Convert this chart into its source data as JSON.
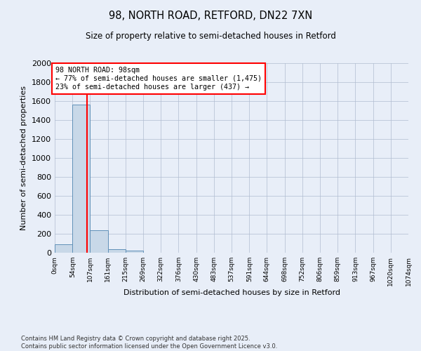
{
  "title1": "98, NORTH ROAD, RETFORD, DN22 7XN",
  "title2": "Size of property relative to semi-detached houses in Retford",
  "xlabel": "Distribution of semi-detached houses by size in Retford",
  "ylabel": "Number of semi-detached properties",
  "bar_counts": [
    90,
    1560,
    240,
    35,
    25,
    0,
    0,
    0,
    0,
    0,
    0,
    0,
    0,
    0,
    0,
    0,
    0,
    0,
    0,
    0
  ],
  "bin_edges": [
    0,
    54,
    107,
    161,
    215,
    269,
    322,
    376,
    430,
    483,
    537,
    591,
    644,
    698,
    752,
    806,
    859,
    913,
    967,
    1020,
    1074
  ],
  "tick_labels": [
    "0sqm",
    "54sqm",
    "107sqm",
    "161sqm",
    "215sqm",
    "269sqm",
    "322sqm",
    "376sqm",
    "430sqm",
    "483sqm",
    "537sqm",
    "591sqm",
    "644sqm",
    "698sqm",
    "752sqm",
    "806sqm",
    "859sqm",
    "913sqm",
    "967sqm",
    "1020sqm",
    "1074sqm"
  ],
  "bar_color": "#c8d8e8",
  "bar_edge_color": "#6090b8",
  "property_line_x": 98,
  "annotation_title": "98 NORTH ROAD: 98sqm",
  "annotation_line1": "← 77% of semi-detached houses are smaller (1,475)",
  "annotation_line2": "23% of semi-detached houses are larger (437) →",
  "annotation_box_color": "white",
  "annotation_box_edge_color": "red",
  "property_vline_color": "red",
  "ylim": [
    0,
    2000
  ],
  "yticks": [
    0,
    200,
    400,
    600,
    800,
    1000,
    1200,
    1400,
    1600,
    1800,
    2000
  ],
  "grid_color": "#b0bcd0",
  "bg_color": "#e8eef8",
  "footnote1": "Contains HM Land Registry data © Crown copyright and database right 2025.",
  "footnote2": "Contains public sector information licensed under the Open Government Licence v3.0."
}
